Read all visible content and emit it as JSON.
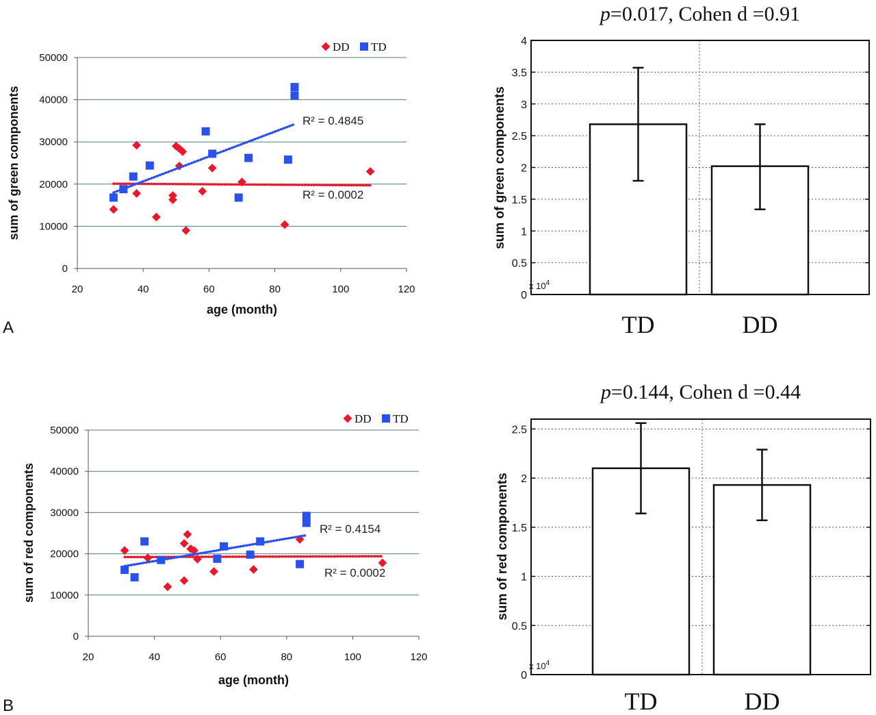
{
  "figure": {
    "panel_labels": [
      "A",
      "B"
    ]
  },
  "colors": {
    "dd": "#e8192c",
    "td": "#2a52e8",
    "grid_scatter": "#4f7d72",
    "grid_bar": "#555555",
    "axis": "#111111"
  },
  "chart_data": [
    {
      "id": "scatter-green",
      "type": "scatter",
      "xlabel": "age (month)",
      "ylabel": "sum of green components",
      "xlim": [
        20,
        120
      ],
      "ylim": [
        0,
        50000
      ],
      "xticks": [
        20,
        40,
        60,
        80,
        100,
        120
      ],
      "yticks": [
        0,
        10000,
        20000,
        30000,
        40000,
        50000
      ],
      "grid": "horizontal",
      "legend": {
        "placement": "top-right",
        "entries": [
          "DD",
          "TD"
        ]
      },
      "series": [
        {
          "name": "DD",
          "marker": "diamond",
          "color_key": "dd",
          "points": [
            [
              31,
              14000
            ],
            [
              38,
              29200
            ],
            [
              38,
              17800
            ],
            [
              44,
              12200
            ],
            [
              49,
              17300
            ],
            [
              49,
              16300
            ],
            [
              50,
              29000
            ],
            [
              51,
              28400
            ],
            [
              51,
              24300
            ],
            [
              52,
              27700
            ],
            [
              53,
              9000
            ],
            [
              58,
              18300
            ],
            [
              61,
              23800
            ],
            [
              70,
              20500
            ],
            [
              83,
              10400
            ],
            [
              109,
              23000
            ]
          ],
          "trendline": {
            "x": [
              31,
              109
            ],
            "y": [
              20100,
              19700
            ],
            "label": "R² = 0.0002"
          }
        },
        {
          "name": "TD",
          "marker": "square",
          "color_key": "td",
          "points": [
            [
              31,
              16800
            ],
            [
              34,
              18800
            ],
            [
              37,
              21800
            ],
            [
              42,
              24400
            ],
            [
              59,
              32500
            ],
            [
              61,
              27200
            ],
            [
              69,
              16800
            ],
            [
              72,
              26200
            ],
            [
              84,
              25800
            ],
            [
              86,
              43000
            ],
            [
              86,
              41000
            ]
          ],
          "trendline": {
            "x": [
              31,
              86
            ],
            "y": [
              18000,
              34200
            ],
            "label": "R² = 0.4845"
          }
        }
      ]
    },
    {
      "id": "bar-green",
      "type": "bar",
      "title_p": "p",
      "title_rest": "=0.017, Cohen d =0.91",
      "ylabel": "sum of green components",
      "categories": [
        "TD",
        "DD"
      ],
      "values": [
        2.68,
        2.02
      ],
      "errors": [
        [
          1.79,
          3.57
        ],
        [
          1.34,
          2.68
        ]
      ],
      "ylim": [
        0,
        4
      ],
      "yticks": [
        0,
        0.5,
        1,
        1.5,
        2,
        2.5,
        3,
        3.5,
        4
      ],
      "ytick_labels": [
        "0",
        "0.5",
        "1",
        "1.5",
        "2",
        "2.5",
        "3",
        "3.5",
        "4"
      ],
      "scale_label": "x 10",
      "scale_exp": "4",
      "grid": "dotted"
    },
    {
      "id": "scatter-red",
      "type": "scatter",
      "xlabel": "age (month)",
      "ylabel": "sum of red components",
      "xlim": [
        20,
        120
      ],
      "ylim": [
        0,
        50000
      ],
      "xticks": [
        20,
        40,
        60,
        80,
        100,
        120
      ],
      "yticks": [
        0,
        10000,
        20000,
        30000,
        40000,
        50000
      ],
      "grid": "horizontal",
      "legend": {
        "placement": "top-right",
        "entries": [
          "DD",
          "TD"
        ]
      },
      "series": [
        {
          "name": "DD",
          "marker": "diamond",
          "color_key": "dd",
          "points": [
            [
              31,
              20800
            ],
            [
              38,
              19000
            ],
            [
              44,
              12000
            ],
            [
              49,
              22500
            ],
            [
              49,
              13500
            ],
            [
              50,
              24700
            ],
            [
              51,
              21200
            ],
            [
              52,
              20800
            ],
            [
              53,
              18700
            ],
            [
              58,
              15700
            ],
            [
              70,
              16200
            ],
            [
              84,
              23500
            ],
            [
              109,
              17800
            ]
          ],
          "trendline": {
            "x": [
              31,
              109
            ],
            "y": [
              19200,
              19400
            ],
            "label": "R² = 0.0002"
          }
        },
        {
          "name": "TD",
          "marker": "square",
          "color_key": "td",
          "points": [
            [
              31,
              16100
            ],
            [
              34,
              14300
            ],
            [
              37,
              23000
            ],
            [
              42,
              18500
            ],
            [
              59,
              18800
            ],
            [
              61,
              21800
            ],
            [
              69,
              19800
            ],
            [
              72,
              23000
            ],
            [
              84,
              17500
            ],
            [
              86,
              29200
            ],
            [
              86,
              27500
            ]
          ],
          "trendline": {
            "x": [
              31,
              86
            ],
            "y": [
              17000,
              24500
            ],
            "label": "R² = 0.4154"
          }
        }
      ]
    },
    {
      "id": "bar-red",
      "type": "bar",
      "title_p": "p",
      "title_rest": "=0.144, Cohen d =0.44",
      "ylabel": "sum of red components",
      "categories": [
        "TD",
        "DD"
      ],
      "values": [
        2.1,
        1.93
      ],
      "errors": [
        [
          1.64,
          2.56
        ],
        [
          1.57,
          2.29
        ]
      ],
      "ylim": [
        0,
        2.6
      ],
      "yticks": [
        0,
        0.5,
        1,
        1.5,
        2,
        2.5
      ],
      "ytick_labels": [
        "0",
        "0.5",
        "1",
        "1.5",
        "2",
        "2.5"
      ],
      "scale_label": "x 10",
      "scale_exp": "4",
      "grid": "dotted"
    }
  ]
}
